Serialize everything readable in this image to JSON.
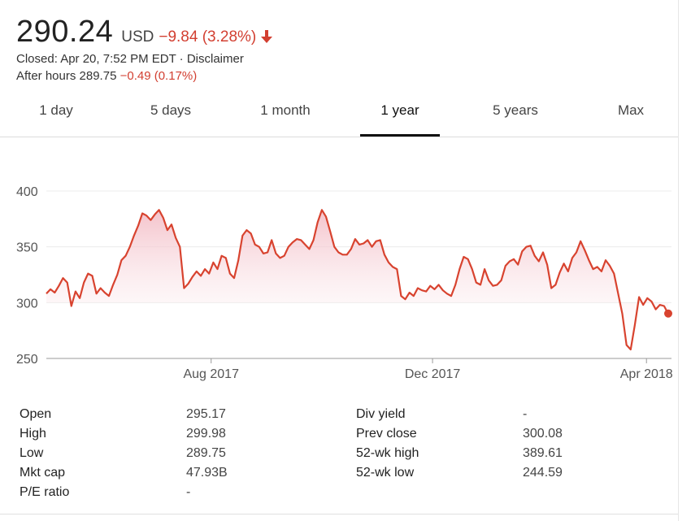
{
  "quote": {
    "price": "290.24",
    "currency": "USD",
    "change": "−9.84 (3.28%)",
    "closed_text": "Closed: Apr 20, 7:52 PM EDT · Disclaimer",
    "after_hours_label": "After hours 289.75",
    "after_hours_change": "−0.49 (0.17%)",
    "trend_icon": "arrow-down-icon",
    "negative_color": "#d23f31"
  },
  "tabs": [
    {
      "label": "1 day",
      "active": false
    },
    {
      "label": "5 days",
      "active": false
    },
    {
      "label": "1 month",
      "active": false
    },
    {
      "label": "1 year",
      "active": true
    },
    {
      "label": "5 years",
      "active": false
    },
    {
      "label": "Max",
      "active": false
    }
  ],
  "chart_data": {
    "type": "area",
    "line_color": "#d8432f",
    "fill_color": "#f4c8ce",
    "grid": true,
    "y_ticks": [
      250,
      300,
      350,
      400
    ],
    "ylim": [
      250,
      400
    ],
    "x_tick_labels": [
      "Aug 2017",
      "Dec 2017",
      "Apr 2018"
    ],
    "x_tick_positions": [
      0.265,
      0.621,
      0.965
    ],
    "xlabel": "",
    "ylabel": "",
    "values": [
      308,
      312,
      309,
      315,
      322,
      318,
      297,
      310,
      304,
      318,
      326,
      324,
      308,
      313,
      309,
      306,
      316,
      325,
      338,
      342,
      350,
      360,
      369,
      380,
      378,
      374,
      379,
      383,
      376,
      365,
      370,
      358,
      350,
      313,
      317,
      323,
      328,
      324,
      330,
      326,
      336,
      330,
      342,
      340,
      326,
      322,
      338,
      360,
      365,
      362,
      352,
      350,
      344,
      345,
      356,
      344,
      340,
      342,
      350,
      354,
      357,
      356,
      352,
      348,
      356,
      372,
      383,
      377,
      364,
      350,
      345,
      343,
      343,
      348,
      357,
      352,
      353,
      356,
      350,
      355,
      356,
      343,
      336,
      332,
      330,
      306,
      303,
      309,
      306,
      313,
      311,
      310,
      315,
      312,
      316,
      311,
      308,
      306,
      316,
      330,
      341,
      339,
      330,
      318,
      316,
      330,
      320,
      315,
      316,
      320,
      333,
      337,
      339,
      334,
      346,
      350,
      351,
      342,
      337,
      345,
      334,
      313,
      316,
      327,
      335,
      328,
      340,
      345,
      355,
      347,
      338,
      330,
      332,
      328,
      338,
      333,
      326,
      308,
      290,
      262,
      258,
      280,
      305,
      298,
      304,
      301,
      294,
      298,
      297,
      290
    ],
    "last_value": 290.24
  },
  "stats": {
    "left": [
      {
        "label": "Open",
        "value": "295.17"
      },
      {
        "label": "High",
        "value": "299.98"
      },
      {
        "label": "Low",
        "value": "289.75"
      },
      {
        "label": "Mkt cap",
        "value": "47.93B"
      },
      {
        "label": "P/E ratio",
        "value": "-"
      }
    ],
    "right": [
      {
        "label": "Div yield",
        "value": "-"
      },
      {
        "label": "Prev close",
        "value": "300.08"
      },
      {
        "label": "52-wk high",
        "value": "389.61"
      },
      {
        "label": "52-wk low",
        "value": "244.59"
      }
    ]
  }
}
